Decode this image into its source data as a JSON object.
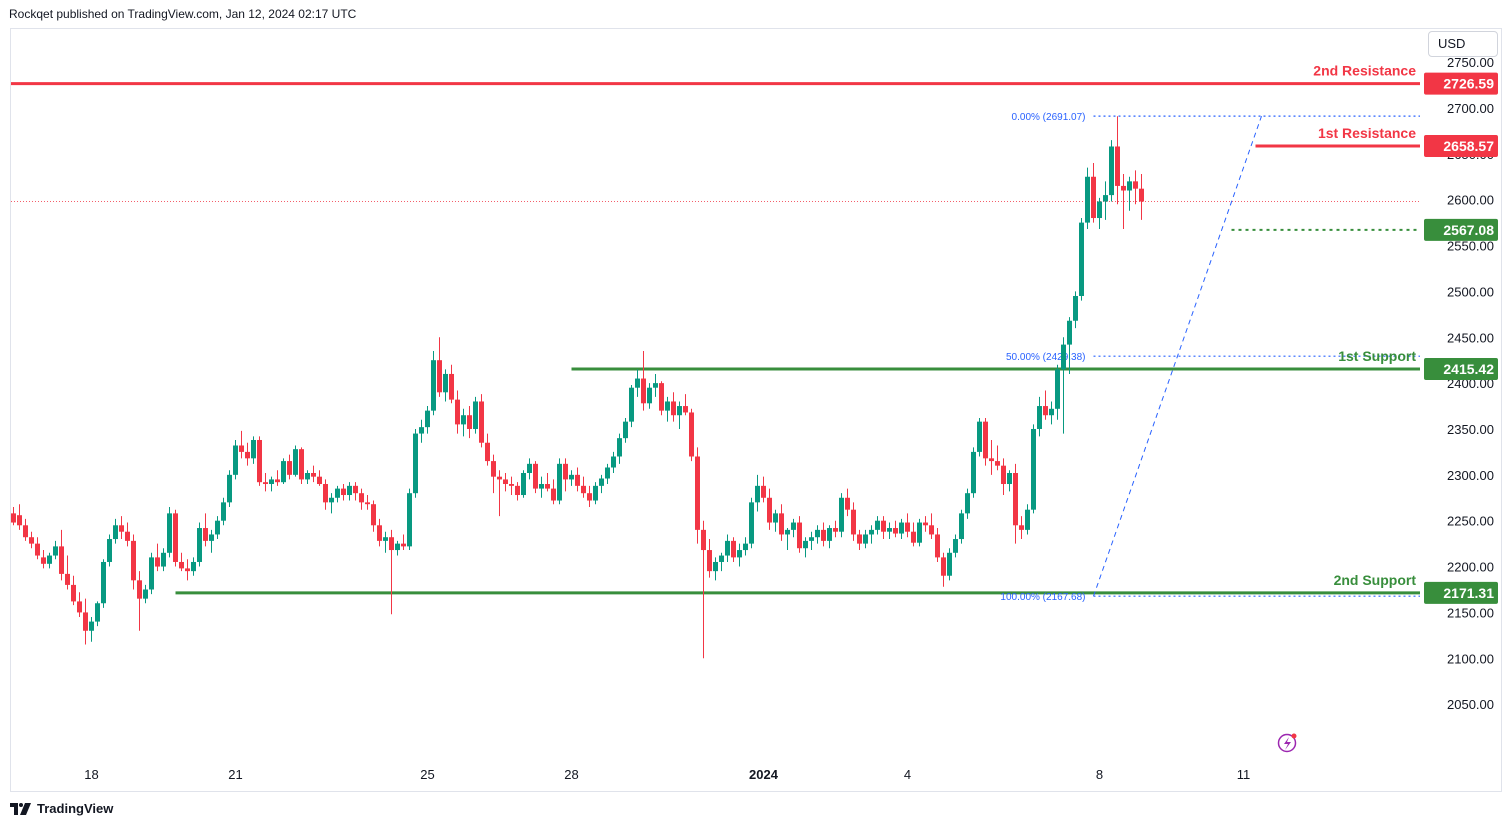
{
  "header": {
    "attribution": "Rockqet published on TradingView.com, Jan 12, 2024 02:17 UTC"
  },
  "footer": {
    "brand": "TradingView"
  },
  "currency": "USD",
  "colors": {
    "up": "#089981",
    "down": "#f23645",
    "resistance": "#f23645",
    "support": "#388e3c",
    "fib": "#2962ff",
    "price_line": "#f23645",
    "axis_text": "#131722",
    "flash_icon": "#9c27b0"
  },
  "chart_data": {
    "type": "candlestick",
    "currency": "USD",
    "interval_note": "4h candles",
    "y_axis": {
      "range": [
        2000,
        2785
      ],
      "ticks": [
        2050,
        2100,
        2150,
        2200,
        2250,
        2300,
        2350,
        2400,
        2450,
        2500,
        2550,
        2600,
        2650,
        2700,
        2750
      ],
      "tick_labels": [
        "2050.00",
        "2100.00",
        "2150.00",
        "2200.00",
        "2250.00",
        "2300.00",
        "2350.00",
        "2400.00",
        "2450.00",
        "2500.00",
        "2550.00",
        "2600.00",
        "2650.00",
        "2700.00",
        "2750.00"
      ]
    },
    "x_axis": {
      "range": [
        0,
        250
      ],
      "labels": [
        {
          "text": "18",
          "bar": 13,
          "bold": false
        },
        {
          "text": "21",
          "bar": 37,
          "bold": false
        },
        {
          "text": "25",
          "bar": 69,
          "bold": false
        },
        {
          "text": "28",
          "bar": 93,
          "bold": false
        },
        {
          "text": "2024",
          "bar": 125,
          "bold": true
        },
        {
          "text": "4",
          "bar": 149,
          "bold": false
        },
        {
          "text": "8",
          "bar": 181,
          "bold": false
        },
        {
          "text": "11",
          "bar": 205,
          "bold": false
        }
      ]
    },
    "current_price": 2598,
    "candles": [
      [
        2258,
        2265,
        2245,
        2248
      ],
      [
        2256,
        2268,
        2240,
        2245
      ],
      [
        2245,
        2252,
        2228,
        2232
      ],
      [
        2232,
        2238,
        2220,
        2225
      ],
      [
        2225,
        2232,
        2208,
        2212
      ],
      [
        2210,
        2218,
        2198,
        2203
      ],
      [
        2203,
        2215,
        2198,
        2212
      ],
      [
        2212,
        2228,
        2208,
        2222
      ],
      [
        2222,
        2240,
        2185,
        2192
      ],
      [
        2192,
        2212,
        2175,
        2180
      ],
      [
        2180,
        2190,
        2158,
        2162
      ],
      [
        2162,
        2172,
        2145,
        2150
      ],
      [
        2150,
        2165,
        2115,
        2130
      ],
      [
        2130,
        2145,
        2118,
        2140
      ],
      [
        2140,
        2162,
        2135,
        2160
      ],
      [
        2160,
        2208,
        2155,
        2205
      ],
      [
        2205,
        2235,
        2200,
        2230
      ],
      [
        2230,
        2252,
        2225,
        2245
      ],
      [
        2245,
        2255,
        2230,
        2238
      ],
      [
        2238,
        2248,
        2222,
        2228
      ],
      [
        2228,
        2235,
        2175,
        2185
      ],
      [
        2185,
        2195,
        2130,
        2165
      ],
      [
        2165,
        2180,
        2160,
        2175
      ],
      [
        2175,
        2215,
        2170,
        2210
      ],
      [
        2210,
        2225,
        2195,
        2200
      ],
      [
        2200,
        2220,
        2195,
        2215
      ],
      [
        2215,
        2265,
        2210,
        2258
      ],
      [
        2258,
        2262,
        2200,
        2205
      ],
      [
        2205,
        2215,
        2195,
        2198
      ],
      [
        2198,
        2208,
        2185,
        2195
      ],
      [
        2195,
        2210,
        2190,
        2205
      ],
      [
        2205,
        2248,
        2200,
        2242
      ],
      [
        2242,
        2258,
        2222,
        2228
      ],
      [
        2228,
        2240,
        2215,
        2235
      ],
      [
        2235,
        2255,
        2230,
        2250
      ],
      [
        2250,
        2275,
        2245,
        2270
      ],
      [
        2270,
        2305,
        2265,
        2300
      ],
      [
        2300,
        2338,
        2295,
        2332
      ],
      [
        2332,
        2348,
        2318,
        2325
      ],
      [
        2325,
        2335,
        2310,
        2318
      ],
      [
        2318,
        2342,
        2312,
        2338
      ],
      [
        2338,
        2342,
        2288,
        2292
      ],
      [
        2292,
        2302,
        2282,
        2290
      ],
      [
        2290,
        2298,
        2282,
        2295
      ],
      [
        2295,
        2305,
        2288,
        2292
      ],
      [
        2292,
        2318,
        2290,
        2315
      ],
      [
        2315,
        2322,
        2295,
        2300
      ],
      [
        2300,
        2332,
        2298,
        2328
      ],
      [
        2328,
        2330,
        2290,
        2295
      ],
      [
        2295,
        2305,
        2290,
        2302
      ],
      [
        2302,
        2310,
        2292,
        2298
      ],
      [
        2298,
        2305,
        2288,
        2290
      ],
      [
        2290,
        2295,
        2262,
        2270
      ],
      [
        2270,
        2280,
        2258,
        2275
      ],
      [
        2275,
        2288,
        2270,
        2285
      ],
      [
        2285,
        2290,
        2272,
        2278
      ],
      [
        2278,
        2292,
        2272,
        2288
      ],
      [
        2288,
        2292,
        2272,
        2280
      ],
      [
        2280,
        2285,
        2262,
        2270
      ],
      [
        2270,
        2278,
        2262,
        2268
      ],
      [
        2268,
        2272,
        2238,
        2245
      ],
      [
        2245,
        2252,
        2222,
        2228
      ],
      [
        2228,
        2238,
        2215,
        2232
      ],
      [
        2232,
        2240,
        2148,
        2218
      ],
      [
        2218,
        2228,
        2212,
        2225
      ],
      [
        2225,
        2235,
        2218,
        2222
      ],
      [
        2222,
        2285,
        2218,
        2280
      ],
      [
        2280,
        2350,
        2275,
        2345
      ],
      [
        2345,
        2360,
        2335,
        2352
      ],
      [
        2352,
        2375,
        2345,
        2370
      ],
      [
        2370,
        2435,
        2365,
        2425
      ],
      [
        2425,
        2450,
        2385,
        2390
      ],
      [
        2390,
        2415,
        2380,
        2410
      ],
      [
        2410,
        2420,
        2378,
        2382
      ],
      [
        2382,
        2392,
        2345,
        2355
      ],
      [
        2355,
        2372,
        2342,
        2365
      ],
      [
        2365,
        2375,
        2340,
        2350
      ],
      [
        2350,
        2385,
        2345,
        2380
      ],
      [
        2380,
        2388,
        2330,
        2335
      ],
      [
        2335,
        2345,
        2310,
        2315
      ],
      [
        2315,
        2322,
        2280,
        2298
      ],
      [
        2298,
        2305,
        2255,
        2295
      ],
      [
        2295,
        2302,
        2282,
        2290
      ],
      [
        2290,
        2298,
        2278,
        2288
      ],
      [
        2288,
        2292,
        2272,
        2278
      ],
      [
        2278,
        2305,
        2275,
        2302
      ],
      [
        2302,
        2318,
        2295,
        2312
      ],
      [
        2312,
        2315,
        2280,
        2285
      ],
      [
        2285,
        2298,
        2275,
        2290
      ],
      [
        2290,
        2302,
        2282,
        2285
      ],
      [
        2285,
        2295,
        2268,
        2272
      ],
      [
        2272,
        2318,
        2268,
        2312
      ],
      [
        2312,
        2318,
        2282,
        2295
      ],
      [
        2295,
        2305,
        2288,
        2300
      ],
      [
        2300,
        2308,
        2282,
        2288
      ],
      [
        2288,
        2298,
        2275,
        2280
      ],
      [
        2280,
        2288,
        2265,
        2272
      ],
      [
        2272,
        2292,
        2268,
        2288
      ],
      [
        2288,
        2300,
        2280,
        2296
      ],
      [
        2296,
        2312,
        2290,
        2308
      ],
      [
        2308,
        2325,
        2302,
        2320
      ],
      [
        2320,
        2345,
        2312,
        2340
      ],
      [
        2340,
        2362,
        2335,
        2358
      ],
      [
        2358,
        2398,
        2352,
        2395
      ],
      [
        2395,
        2415,
        2385,
        2405
      ],
      [
        2405,
        2435,
        2370,
        2378
      ],
      [
        2378,
        2400,
        2372,
        2395
      ],
      [
        2395,
        2410,
        2385,
        2400
      ],
      [
        2400,
        2402,
        2365,
        2370
      ],
      [
        2370,
        2385,
        2358,
        2380
      ],
      [
        2380,
        2390,
        2358,
        2365
      ],
      [
        2365,
        2380,
        2350,
        2375
      ],
      [
        2375,
        2388,
        2365,
        2368
      ],
      [
        2368,
        2372,
        2315,
        2320
      ],
      [
        2320,
        2330,
        2225,
        2240
      ],
      [
        2240,
        2250,
        2100,
        2218
      ],
      [
        2218,
        2230,
        2188,
        2195
      ],
      [
        2195,
        2210,
        2185,
        2205
      ],
      [
        2205,
        2215,
        2195,
        2212
      ],
      [
        2212,
        2235,
        2205,
        2228
      ],
      [
        2228,
        2232,
        2205,
        2210
      ],
      [
        2210,
        2225,
        2200,
        2218
      ],
      [
        2218,
        2232,
        2212,
        2225
      ],
      [
        2225,
        2275,
        2220,
        2270
      ],
      [
        2270,
        2300,
        2260,
        2288
      ],
      [
        2288,
        2298,
        2270,
        2275
      ],
      [
        2275,
        2285,
        2240,
        2248
      ],
      [
        2248,
        2262,
        2238,
        2258
      ],
      [
        2258,
        2268,
        2228,
        2235
      ],
      [
        2235,
        2242,
        2218,
        2240
      ],
      [
        2240,
        2252,
        2232,
        2248
      ],
      [
        2248,
        2255,
        2215,
        2220
      ],
      [
        2220,
        2232,
        2210,
        2228
      ],
      [
        2228,
        2238,
        2218,
        2232
      ],
      [
        2232,
        2245,
        2225,
        2240
      ],
      [
        2240,
        2248,
        2222,
        2228
      ],
      [
        2228,
        2245,
        2220,
        2242
      ],
      [
        2242,
        2250,
        2232,
        2238
      ],
      [
        2238,
        2280,
        2232,
        2275
      ],
      [
        2275,
        2285,
        2255,
        2262
      ],
      [
        2262,
        2270,
        2228,
        2235
      ],
      [
        2235,
        2240,
        2218,
        2225
      ],
      [
        2225,
        2240,
        2220,
        2235
      ],
      [
        2235,
        2245,
        2225,
        2240
      ],
      [
        2240,
        2255,
        2235,
        2250
      ],
      [
        2250,
        2255,
        2230,
        2238
      ],
      [
        2238,
        2248,
        2230,
        2242
      ],
      [
        2242,
        2250,
        2232,
        2236
      ],
      [
        2236,
        2252,
        2230,
        2248
      ],
      [
        2248,
        2258,
        2232,
        2238
      ],
      [
        2238,
        2248,
        2222,
        2226
      ],
      [
        2226,
        2252,
        2222,
        2248
      ],
      [
        2248,
        2255,
        2238,
        2245
      ],
      [
        2245,
        2258,
        2230,
        2235
      ],
      [
        2235,
        2242,
        2205,
        2210
      ],
      [
        2210,
        2215,
        2178,
        2190
      ],
      [
        2190,
        2220,
        2185,
        2215
      ],
      [
        2215,
        2235,
        2210,
        2230
      ],
      [
        2230,
        2262,
        2225,
        2258
      ],
      [
        2258,
        2285,
        2252,
        2280
      ],
      [
        2280,
        2330,
        2275,
        2325
      ],
      [
        2325,
        2362,
        2320,
        2358
      ],
      [
        2358,
        2362,
        2310,
        2318
      ],
      [
        2318,
        2338,
        2300,
        2315
      ],
      [
        2315,
        2332,
        2305,
        2310
      ],
      [
        2310,
        2318,
        2278,
        2290
      ],
      [
        2290,
        2305,
        2282,
        2302
      ],
      [
        2302,
        2312,
        2225,
        2245
      ],
      [
        2245,
        2255,
        2230,
        2240
      ],
      [
        2240,
        2268,
        2235,
        2262
      ],
      [
        2262,
        2355,
        2258,
        2350
      ],
      [
        2350,
        2385,
        2342,
        2375
      ],
      [
        2375,
        2392,
        2360,
        2365
      ],
      [
        2365,
        2380,
        2355,
        2372
      ],
      [
        2372,
        2420,
        2360,
        2415
      ],
      [
        2415,
        2450,
        2345,
        2442
      ],
      [
        2442,
        2472,
        2410,
        2468
      ],
      [
        2468,
        2500,
        2460,
        2495
      ],
      [
        2495,
        2580,
        2490,
        2575
      ],
      [
        2575,
        2635,
        2568,
        2625
      ],
      [
        2625,
        2640,
        2575,
        2580
      ],
      [
        2580,
        2602,
        2568,
        2598
      ],
      [
        2598,
        2620,
        2578,
        2605
      ],
      [
        2605,
        2665,
        2598,
        2658
      ],
      [
        2658,
        2691,
        2595,
        2615
      ],
      [
        2615,
        2628,
        2568,
        2610
      ],
      [
        2610,
        2625,
        2588,
        2620
      ],
      [
        2620,
        2632,
        2595,
        2612
      ],
      [
        2612,
        2628,
        2578,
        2598
      ]
    ],
    "horizontal_levels": [
      {
        "label": "2nd Resistance",
        "price": 2726.59,
        "price_label": "2726.59",
        "color": "#f23645",
        "style": "solid",
        "from_bar": -10
      },
      {
        "label": "1st Resistance",
        "price": 2658.57,
        "price_label": "2658.57",
        "color": "#f23645",
        "style": "solid",
        "from_bar": 207
      },
      {
        "label": "",
        "price": 2567.08,
        "price_label": "2567.08",
        "color": "#388e3c",
        "style": "dotted",
        "from_bar": 203
      },
      {
        "label": "1st Support",
        "price": 2415.42,
        "price_label": "2415.42",
        "color": "#388e3c",
        "style": "solid",
        "from_bar": 93
      },
      {
        "label": "2nd Support",
        "price": 2171.31,
        "price_label": "2171.31",
        "color": "#388e3c",
        "style": "solid",
        "from_bar": 27
      }
    ],
    "fibonacci": {
      "start_bar": 180,
      "end_bar": 208,
      "levels": [
        {
          "label": "0.00% (2691.07)",
          "price": 2691.07
        },
        {
          "label": "50.00% (2429.38)",
          "price": 2429.38
        },
        {
          "label": "100.00% (2167.68)",
          "price": 2167.68
        }
      ]
    }
  }
}
